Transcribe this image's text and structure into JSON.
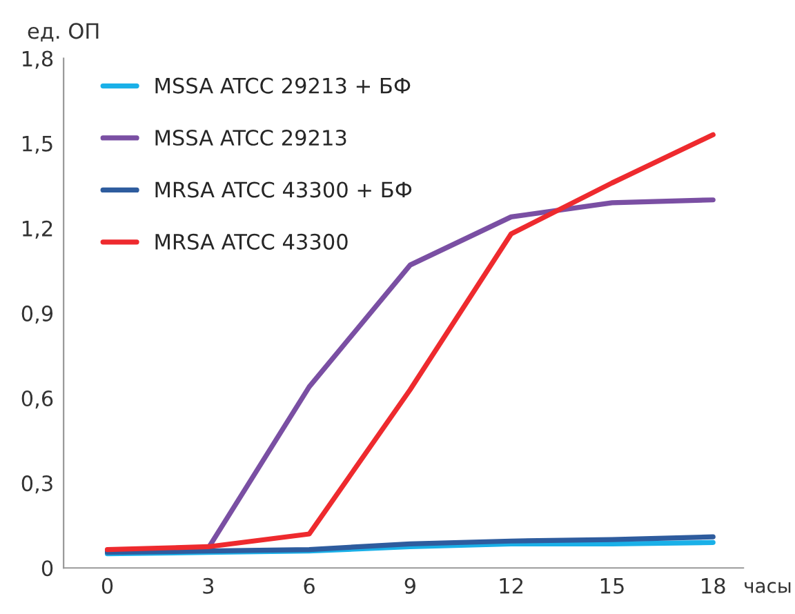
{
  "chart_data": {
    "type": "line",
    "xlabel": "часы",
    "ylabel": "ед. ОП",
    "x": [
      0,
      3,
      6,
      9,
      12,
      15,
      18
    ],
    "series": [
      {
        "name": "MSSA ATCC 29213 + БФ",
        "color": "#1ab0e8",
        "values": [
          0.05,
          0.055,
          0.06,
          0.075,
          0.085,
          0.085,
          0.09
        ]
      },
      {
        "name": "MSSA ATCC 29213",
        "color": "#7a4fa3",
        "values": [
          0.06,
          0.07,
          0.64,
          1.07,
          1.24,
          1.29,
          1.3
        ]
      },
      {
        "name": "MRSA ATCC 43300 + БФ",
        "color": "#2e5c9e",
        "values": [
          0.055,
          0.06,
          0.065,
          0.085,
          0.095,
          0.1,
          0.11
        ]
      },
      {
        "name": "MRSA ATCC 43300",
        "color": "#ee2a2e",
        "values": [
          0.065,
          0.075,
          0.12,
          0.63,
          1.18,
          1.36,
          1.53
        ]
      }
    ],
    "xlim": [
      -1.3,
      18.9
    ],
    "xticks": [
      0,
      3,
      6,
      9,
      12,
      15,
      18
    ],
    "ylim": [
      0,
      1.8
    ],
    "yticks": [
      0,
      {
        "value": 0.3,
        "label": "0,3"
      },
      {
        "value": 0.6,
        "label": "0,6"
      },
      {
        "value": 0.9,
        "label": "0,9"
      },
      {
        "value": 1.2,
        "label": "1,2"
      },
      {
        "value": 1.5,
        "label": "1,5"
      },
      {
        "value": 1.8,
        "label": "1,8"
      }
    ],
    "grid": false,
    "legend": "top left",
    "marker": "none",
    "line_style": "solid"
  }
}
